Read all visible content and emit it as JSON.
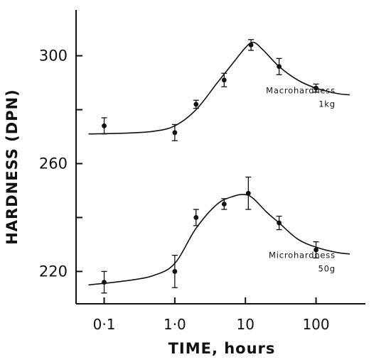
{
  "chart_data": {
    "type": "scatter",
    "title": "",
    "xlabel": "TIME, hours",
    "ylabel": "HARDNESS (DPN)",
    "x_scale": "log",
    "xlim": [
      0.04,
      500
    ],
    "ylim": [
      208,
      317
    ],
    "x_ticks": [
      {
        "value": 0.1,
        "label": "0·1"
      },
      {
        "value": 1.0,
        "label": "1·0"
      },
      {
        "value": 10,
        "label": "10"
      },
      {
        "value": 100,
        "label": "100"
      }
    ],
    "y_ticks": [
      {
        "value": 220,
        "label": "220"
      },
      {
        "value": 240,
        "label": ""
      },
      {
        "value": 260,
        "label": "260"
      },
      {
        "value": 280,
        "label": ""
      },
      {
        "value": 300,
        "label": "300"
      }
    ],
    "grid": false,
    "series": [
      {
        "name": "Macrohardness 1kg",
        "label_lines": [
          "Macrohardness",
          "1kg"
        ],
        "label_anchor": {
          "x": 130,
          "y": 286
        },
        "points": [
          {
            "x": 0.1,
            "y": 274,
            "err": 3
          },
          {
            "x": 1.0,
            "y": 271.5,
            "err": 3
          },
          {
            "x": 2.0,
            "y": 282,
            "err": 1.5
          },
          {
            "x": 5.0,
            "y": 291,
            "err": 2.5
          },
          {
            "x": 12,
            "y": 304,
            "err": 2
          },
          {
            "x": 30,
            "y": 296,
            "err": 3
          },
          {
            "x": 100,
            "y": 288,
            "err": 1.5
          }
        ],
        "curve": [
          [
            0.06,
            271
          ],
          [
            0.2,
            271.3
          ],
          [
            0.5,
            272
          ],
          [
            1.0,
            274
          ],
          [
            2.0,
            280
          ],
          [
            4.0,
            290
          ],
          [
            7.0,
            298
          ],
          [
            10,
            303
          ],
          [
            13,
            305
          ],
          [
            18,
            302
          ],
          [
            30,
            296
          ],
          [
            55,
            291
          ],
          [
            100,
            288
          ],
          [
            200,
            286
          ],
          [
            300,
            285.5
          ]
        ]
      },
      {
        "name": "Microhardness 50g",
        "label_lines": [
          "Microhardness",
          "50g"
        ],
        "label_anchor": {
          "x": 130,
          "y": 225
        },
        "points": [
          {
            "x": 0.1,
            "y": 216,
            "err": 4
          },
          {
            "x": 1.0,
            "y": 220,
            "err": 6
          },
          {
            "x": 2.0,
            "y": 240,
            "err": 3
          },
          {
            "x": 5.0,
            "y": 245,
            "err": 2
          },
          {
            "x": 11,
            "y": 249,
            "err": 6
          },
          {
            "x": 30,
            "y": 238,
            "err": 2.5
          },
          {
            "x": 100,
            "y": 228,
            "err": 3
          }
        ],
        "curve": [
          [
            0.06,
            215
          ],
          [
            0.2,
            216.5
          ],
          [
            0.5,
            218.5
          ],
          [
            1.0,
            223
          ],
          [
            2.0,
            236
          ],
          [
            4.0,
            245
          ],
          [
            7.0,
            248
          ],
          [
            10,
            248.5
          ],
          [
            13,
            247
          ],
          [
            20,
            242
          ],
          [
            30,
            238
          ],
          [
            55,
            232
          ],
          [
            100,
            229
          ],
          [
            200,
            227
          ],
          [
            300,
            226.5
          ]
        ]
      }
    ]
  }
}
